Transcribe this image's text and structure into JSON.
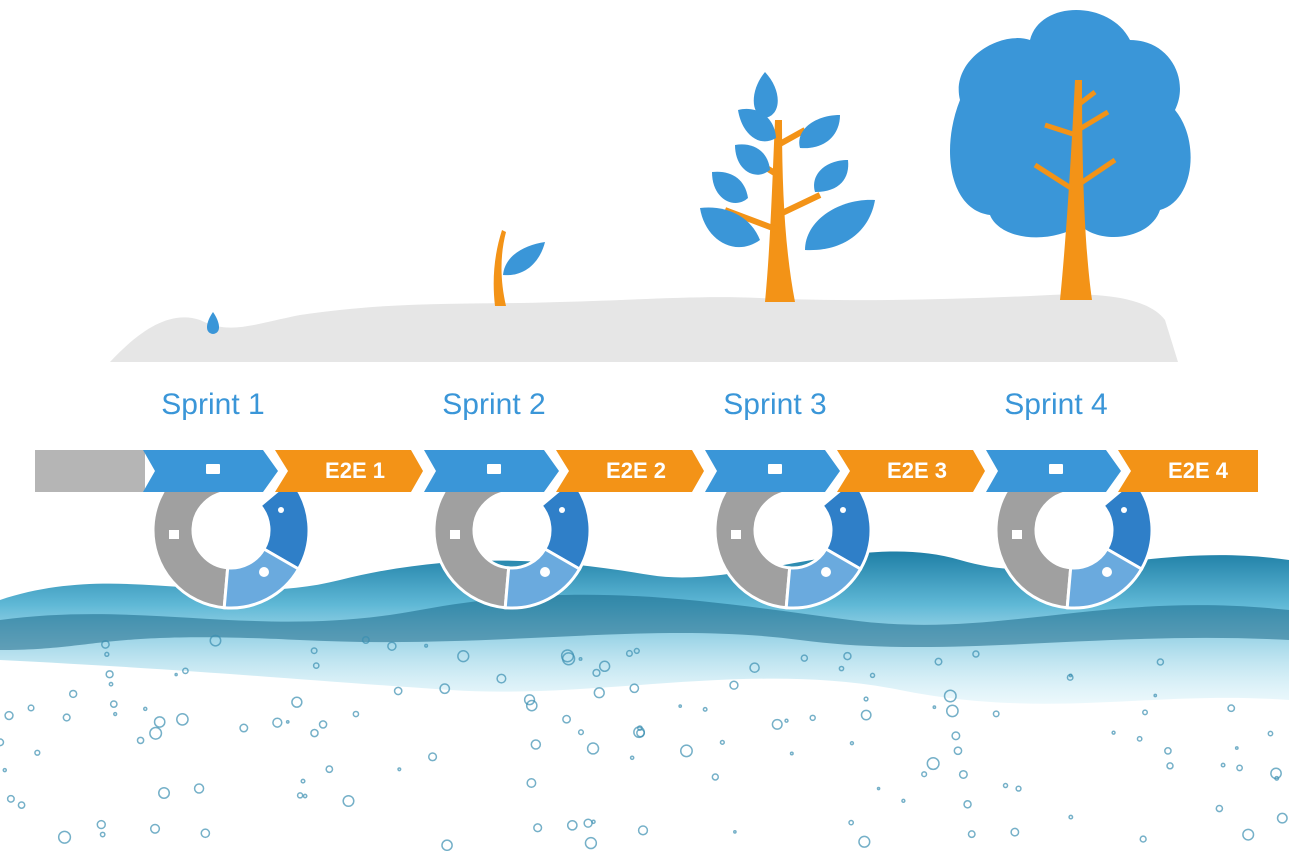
{
  "sprints": [
    {
      "label": "Sprint 1",
      "e2e": "E2E 1"
    },
    {
      "label": "Sprint 2",
      "e2e": "E2E 2"
    },
    {
      "label": "Sprint 3",
      "e2e": "E2E 3"
    },
    {
      "label": "Sprint 4",
      "e2e": "E2E 4"
    }
  ]
}
